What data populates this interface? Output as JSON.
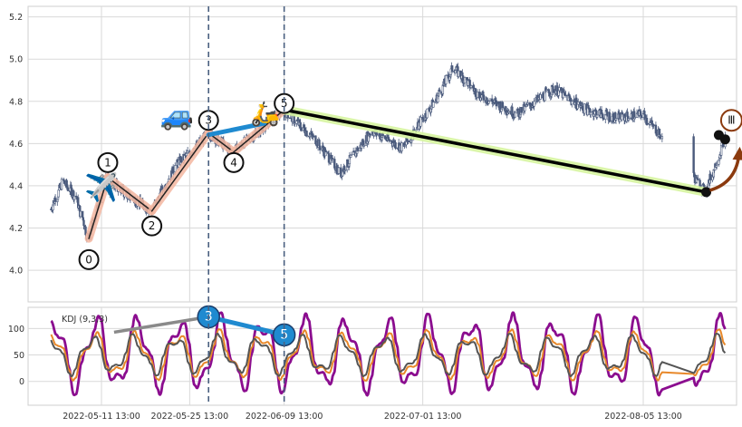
{
  "chart_data": [
    {
      "type": "candlestick",
      "panel": "price",
      "ylim": [
        3.85,
        5.25
      ],
      "yticks": [
        "4.0",
        "4.2",
        "4.4",
        "4.6",
        "4.8",
        "5.0",
        "5.2"
      ],
      "ytick_values": [
        4.0,
        4.2,
        4.4,
        4.6,
        4.8,
        5.0,
        5.2
      ],
      "xrange": [
        "2022-05-02",
        "2022-08-20"
      ],
      "grid": true,
      "wave_points": [
        {
          "label": "0",
          "date": "2022-05-09",
          "price": 4.15
        },
        {
          "label": "1",
          "date": "2022-05-12",
          "price": 4.44
        },
        {
          "label": "2",
          "date": "2022-05-19",
          "price": 4.28
        },
        {
          "label": "3",
          "date": "2022-05-28",
          "price": 4.65
        },
        {
          "label": "4",
          "date": "2022-06-01",
          "price": 4.56
        },
        {
          "label": "5",
          "date": "2022-06-09",
          "price": 4.76
        }
      ],
      "trend_line": {
        "from": {
          "date": "2022-06-09",
          "price": 4.76
        },
        "to": {
          "date": "2022-08-15",
          "price": 4.37
        }
      },
      "pivot_dots": [
        {
          "date": "2022-08-15",
          "price": 4.37
        },
        {
          "date": "2022-08-17",
          "price": 4.64
        },
        {
          "date": "2022-08-18",
          "price": 4.62
        }
      ],
      "badge_roman": "Ⅲ",
      "emoji": {
        "plane": "✈️",
        "car": "🚙",
        "scooter": "🛵"
      },
      "vertical_markers": [
        "2022-05-28",
        "2022-06-09"
      ]
    },
    {
      "type": "line",
      "panel": "indicator",
      "title": "KDJ (9,3,3)",
      "ylim": [
        -45,
        140
      ],
      "yticks": [
        "0",
        "50",
        "100"
      ],
      "ytick_values": [
        0,
        50,
        100
      ],
      "xticks": [
        "2022-05-11 13:00",
        "2022-05-25 13:00",
        "2022-06-09 13:00",
        "2022-07-01 13:00",
        "2022-08-05 13:00"
      ],
      "xtick_dates": [
        "2022-05-11",
        "2022-05-25",
        "2022-06-09",
        "2022-07-01",
        "2022-08-05"
      ],
      "grid": true,
      "divergence_points": [
        {
          "label": "",
          "date": "2022-05-13",
          "value": 93
        },
        {
          "label": "3",
          "date": "2022-05-28",
          "value": 122
        },
        {
          "label": "5",
          "date": "2022-06-09",
          "value": 88
        }
      ],
      "series_colors": {
        "K": "#e8882a",
        "D": "#555555",
        "J": "#8b0d8f"
      }
    }
  ],
  "colors": {
    "candle": "#4a5a7c",
    "wave_band": "#f4b7a0",
    "wave_line": "#222222",
    "wave_blue": "#1f8ad0",
    "trend_band": "#d6f5a0",
    "trend_line": "#000000",
    "arrow": "#8b3a0e",
    "marker_line": "#4a6080",
    "grid": "#d9d9d9",
    "divergence_gray": "#8a8a8a"
  }
}
